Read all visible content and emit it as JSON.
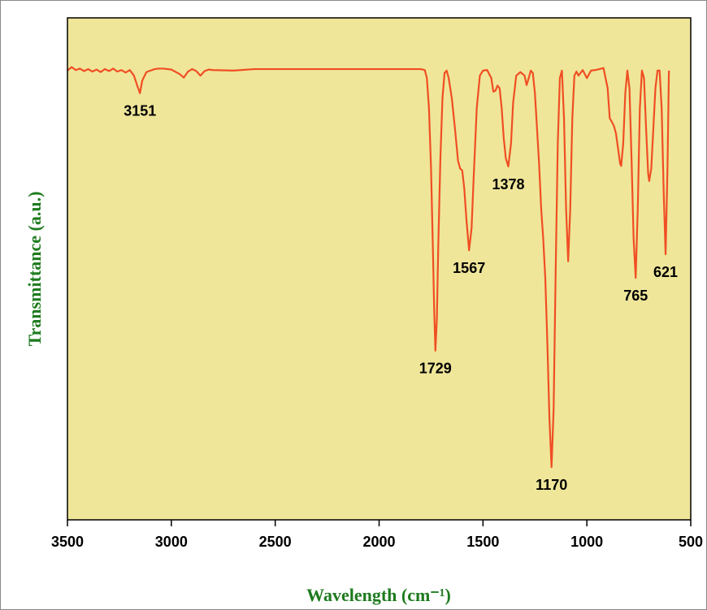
{
  "chart_data": {
    "type": "line",
    "x_label": "Wavelength (cm⁻¹)",
    "y_label": "Transmittance (a.u.)",
    "color": "#f04e23",
    "background": "#efe69a",
    "x": [
      3500,
      3480,
      3460,
      3440,
      3420,
      3400,
      3380,
      3360,
      3340,
      3320,
      3300,
      3280,
      3260,
      3240,
      3220,
      3200,
      3180,
      3160,
      3151,
      3140,
      3120,
      3100,
      3080,
      3060,
      3040,
      3000,
      2960,
      2940,
      2920,
      2900,
      2880,
      2860,
      2840,
      2820,
      2800,
      2700,
      2600,
      2500,
      2400,
      2300,
      2200,
      2100,
      2000,
      1900,
      1800,
      1780,
      1770,
      1760,
      1750,
      1740,
      1735,
      1729,
      1722,
      1715,
      1705,
      1695,
      1685,
      1675,
      1665,
      1650,
      1635,
      1620,
      1610,
      1600,
      1590,
      1580,
      1567,
      1555,
      1545,
      1530,
      1515,
      1500,
      1480,
      1460,
      1450,
      1440,
      1430,
      1420,
      1410,
      1400,
      1390,
      1378,
      1365,
      1355,
      1340,
      1320,
      1300,
      1290,
      1280,
      1270,
      1260,
      1250,
      1240,
      1230,
      1220,
      1210,
      1200,
      1190,
      1180,
      1170,
      1160,
      1150,
      1140,
      1130,
      1120,
      1110,
      1100,
      1090,
      1080,
      1070,
      1060,
      1050,
      1040,
      1020,
      1000,
      980,
      960,
      940,
      920,
      900,
      890,
      880,
      870,
      860,
      850,
      840,
      835,
      825,
      815,
      805,
      795,
      785,
      775,
      765,
      755,
      745,
      735,
      725,
      715,
      705,
      700,
      690,
      680,
      670,
      660,
      650,
      640,
      630,
      621,
      612,
      605
    ],
    "values": [
      89.5,
      90.2,
      89.6,
      89.9,
      89.4,
      89.8,
      89.3,
      89.7,
      89.2,
      89.8,
      89.4,
      89.9,
      89.3,
      89.6,
      89.1,
      89.6,
      88.5,
      86,
      85,
      87.5,
      89.2,
      89.5,
      89.8,
      89.9,
      89.9,
      89.7,
      88.8,
      88.1,
      89.3,
      89.8,
      89.4,
      88.5,
      89.4,
      89.7,
      89.6,
      89.5,
      89.8,
      89.8,
      89.8,
      89.8,
      89.8,
      89.8,
      89.8,
      89.8,
      89.8,
      89.6,
      88,
      82,
      70,
      52,
      42,
      33.7,
      40,
      55,
      72,
      84,
      89,
      89.5,
      88,
      84,
      78,
      71.5,
      70,
      69.6,
      66,
      60,
      53.7,
      58,
      68,
      82,
      88.5,
      89.5,
      89.6,
      88,
      85.3,
      85.5,
      86.5,
      86,
      82,
      76,
      72,
      70.4,
      75,
      83,
      88.5,
      89.2,
      88.5,
      86.6,
      88,
      89.5,
      89,
      85,
      78,
      71,
      62,
      56,
      48,
      35,
      20,
      10.5,
      22,
      50,
      75,
      88,
      89.5,
      80,
      62,
      51.5,
      62,
      80,
      88.5,
      89.3,
      88.5,
      89.6,
      88,
      89.5,
      89.6,
      89.8,
      90,
      86,
      80,
      79.3,
      78.5,
      77,
      74,
      71,
      70.5,
      75,
      85,
      89.5,
      86,
      72,
      56,
      48.2,
      62,
      82,
      89.5,
      88,
      78,
      69,
      67.5,
      70,
      78,
      86,
      89.5,
      89.5,
      82,
      65,
      52.9,
      70,
      89.5
    ],
    "annotations": [
      3151,
      1729,
      1567,
      1378,
      1170,
      765,
      621
    ],
    "xlim": [
      3500,
      500
    ],
    "xticks": [
      3500,
      3000,
      2500,
      2000,
      1500,
      1000,
      500
    ],
    "ylim": [
      0,
      100
    ]
  }
}
